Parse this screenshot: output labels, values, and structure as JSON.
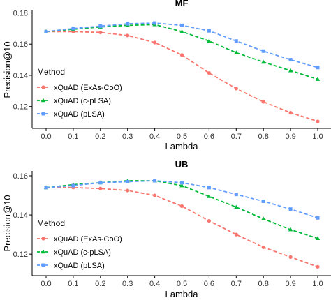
{
  "chart_data": [
    {
      "type": "line",
      "title": "MF",
      "xlabel": "Lambda",
      "ylabel": "Precision@10",
      "x": [
        0.0,
        0.1,
        0.2,
        0.3,
        0.4,
        0.5,
        0.6,
        0.7,
        0.8,
        0.9,
        1.0
      ],
      "xticks": [
        "0.0",
        "0.1",
        "0.2",
        "0.3",
        "0.4",
        "0.5",
        "0.6",
        "0.7",
        "0.8",
        "0.9",
        "1.0"
      ],
      "yticks": [
        0.12,
        0.14,
        0.16,
        0.18
      ],
      "ytick_labels": [
        "0.12",
        "0.14",
        "0.16",
        "0.18"
      ],
      "ylim": [
        0.106,
        0.182
      ],
      "legend_title": "Method",
      "legend_position": "left",
      "series": [
        {
          "name": "xQuAD (ExAs-CoO)",
          "color": "#F8766D",
          "marker": "circle",
          "values": [
            0.168,
            0.168,
            0.1675,
            0.1655,
            0.161,
            0.153,
            0.1415,
            0.1315,
            0.123,
            0.116,
            0.1105
          ]
        },
        {
          "name": "xQuAD (c-pLSA)",
          "color": "#00BA38",
          "marker": "triangle",
          "values": [
            0.168,
            0.1695,
            0.171,
            0.172,
            0.1725,
            0.168,
            0.162,
            0.1545,
            0.1485,
            0.143,
            0.1375
          ]
        },
        {
          "name": "xQuAD (pLSA)",
          "color": "#619CFF",
          "marker": "square",
          "values": [
            0.168,
            0.17,
            0.1715,
            0.173,
            0.1735,
            0.172,
            0.1685,
            0.162,
            0.1555,
            0.15,
            0.145
          ]
        }
      ]
    },
    {
      "type": "line",
      "title": "UB",
      "xlabel": "Lambda",
      "ylabel": "Precision@10",
      "x": [
        0.0,
        0.1,
        0.2,
        0.3,
        0.4,
        0.5,
        0.6,
        0.7,
        0.8,
        0.9,
        1.0
      ],
      "xticks": [
        "0.0",
        "0.1",
        "0.2",
        "0.3",
        "0.4",
        "0.5",
        "0.6",
        "0.7",
        "0.8",
        "0.9",
        "1.0"
      ],
      "yticks": [
        0.12,
        0.14,
        0.16
      ],
      "ytick_labels": [
        "0.12",
        "0.14",
        "0.16"
      ],
      "ylim": [
        0.109,
        0.1625
      ],
      "legend_title": "Method",
      "legend_position": "left",
      "series": [
        {
          "name": "xQuAD (ExAs-CoO)",
          "color": "#F8766D",
          "marker": "circle",
          "values": [
            0.154,
            0.154,
            0.1535,
            0.1525,
            0.15,
            0.1445,
            0.137,
            0.13,
            0.1235,
            0.1185,
            0.1135
          ]
        },
        {
          "name": "xQuAD (c-pLSA)",
          "color": "#00BA38",
          "marker": "triangle",
          "values": [
            0.154,
            0.1555,
            0.1565,
            0.1575,
            0.1575,
            0.155,
            0.1495,
            0.144,
            0.138,
            0.1325,
            0.128
          ]
        },
        {
          "name": "xQuAD (pLSA)",
          "color": "#619CFF",
          "marker": "square",
          "values": [
            0.154,
            0.155,
            0.1565,
            0.157,
            0.1575,
            0.1565,
            0.154,
            0.1505,
            0.147,
            0.143,
            0.1385
          ]
        }
      ]
    }
  ]
}
